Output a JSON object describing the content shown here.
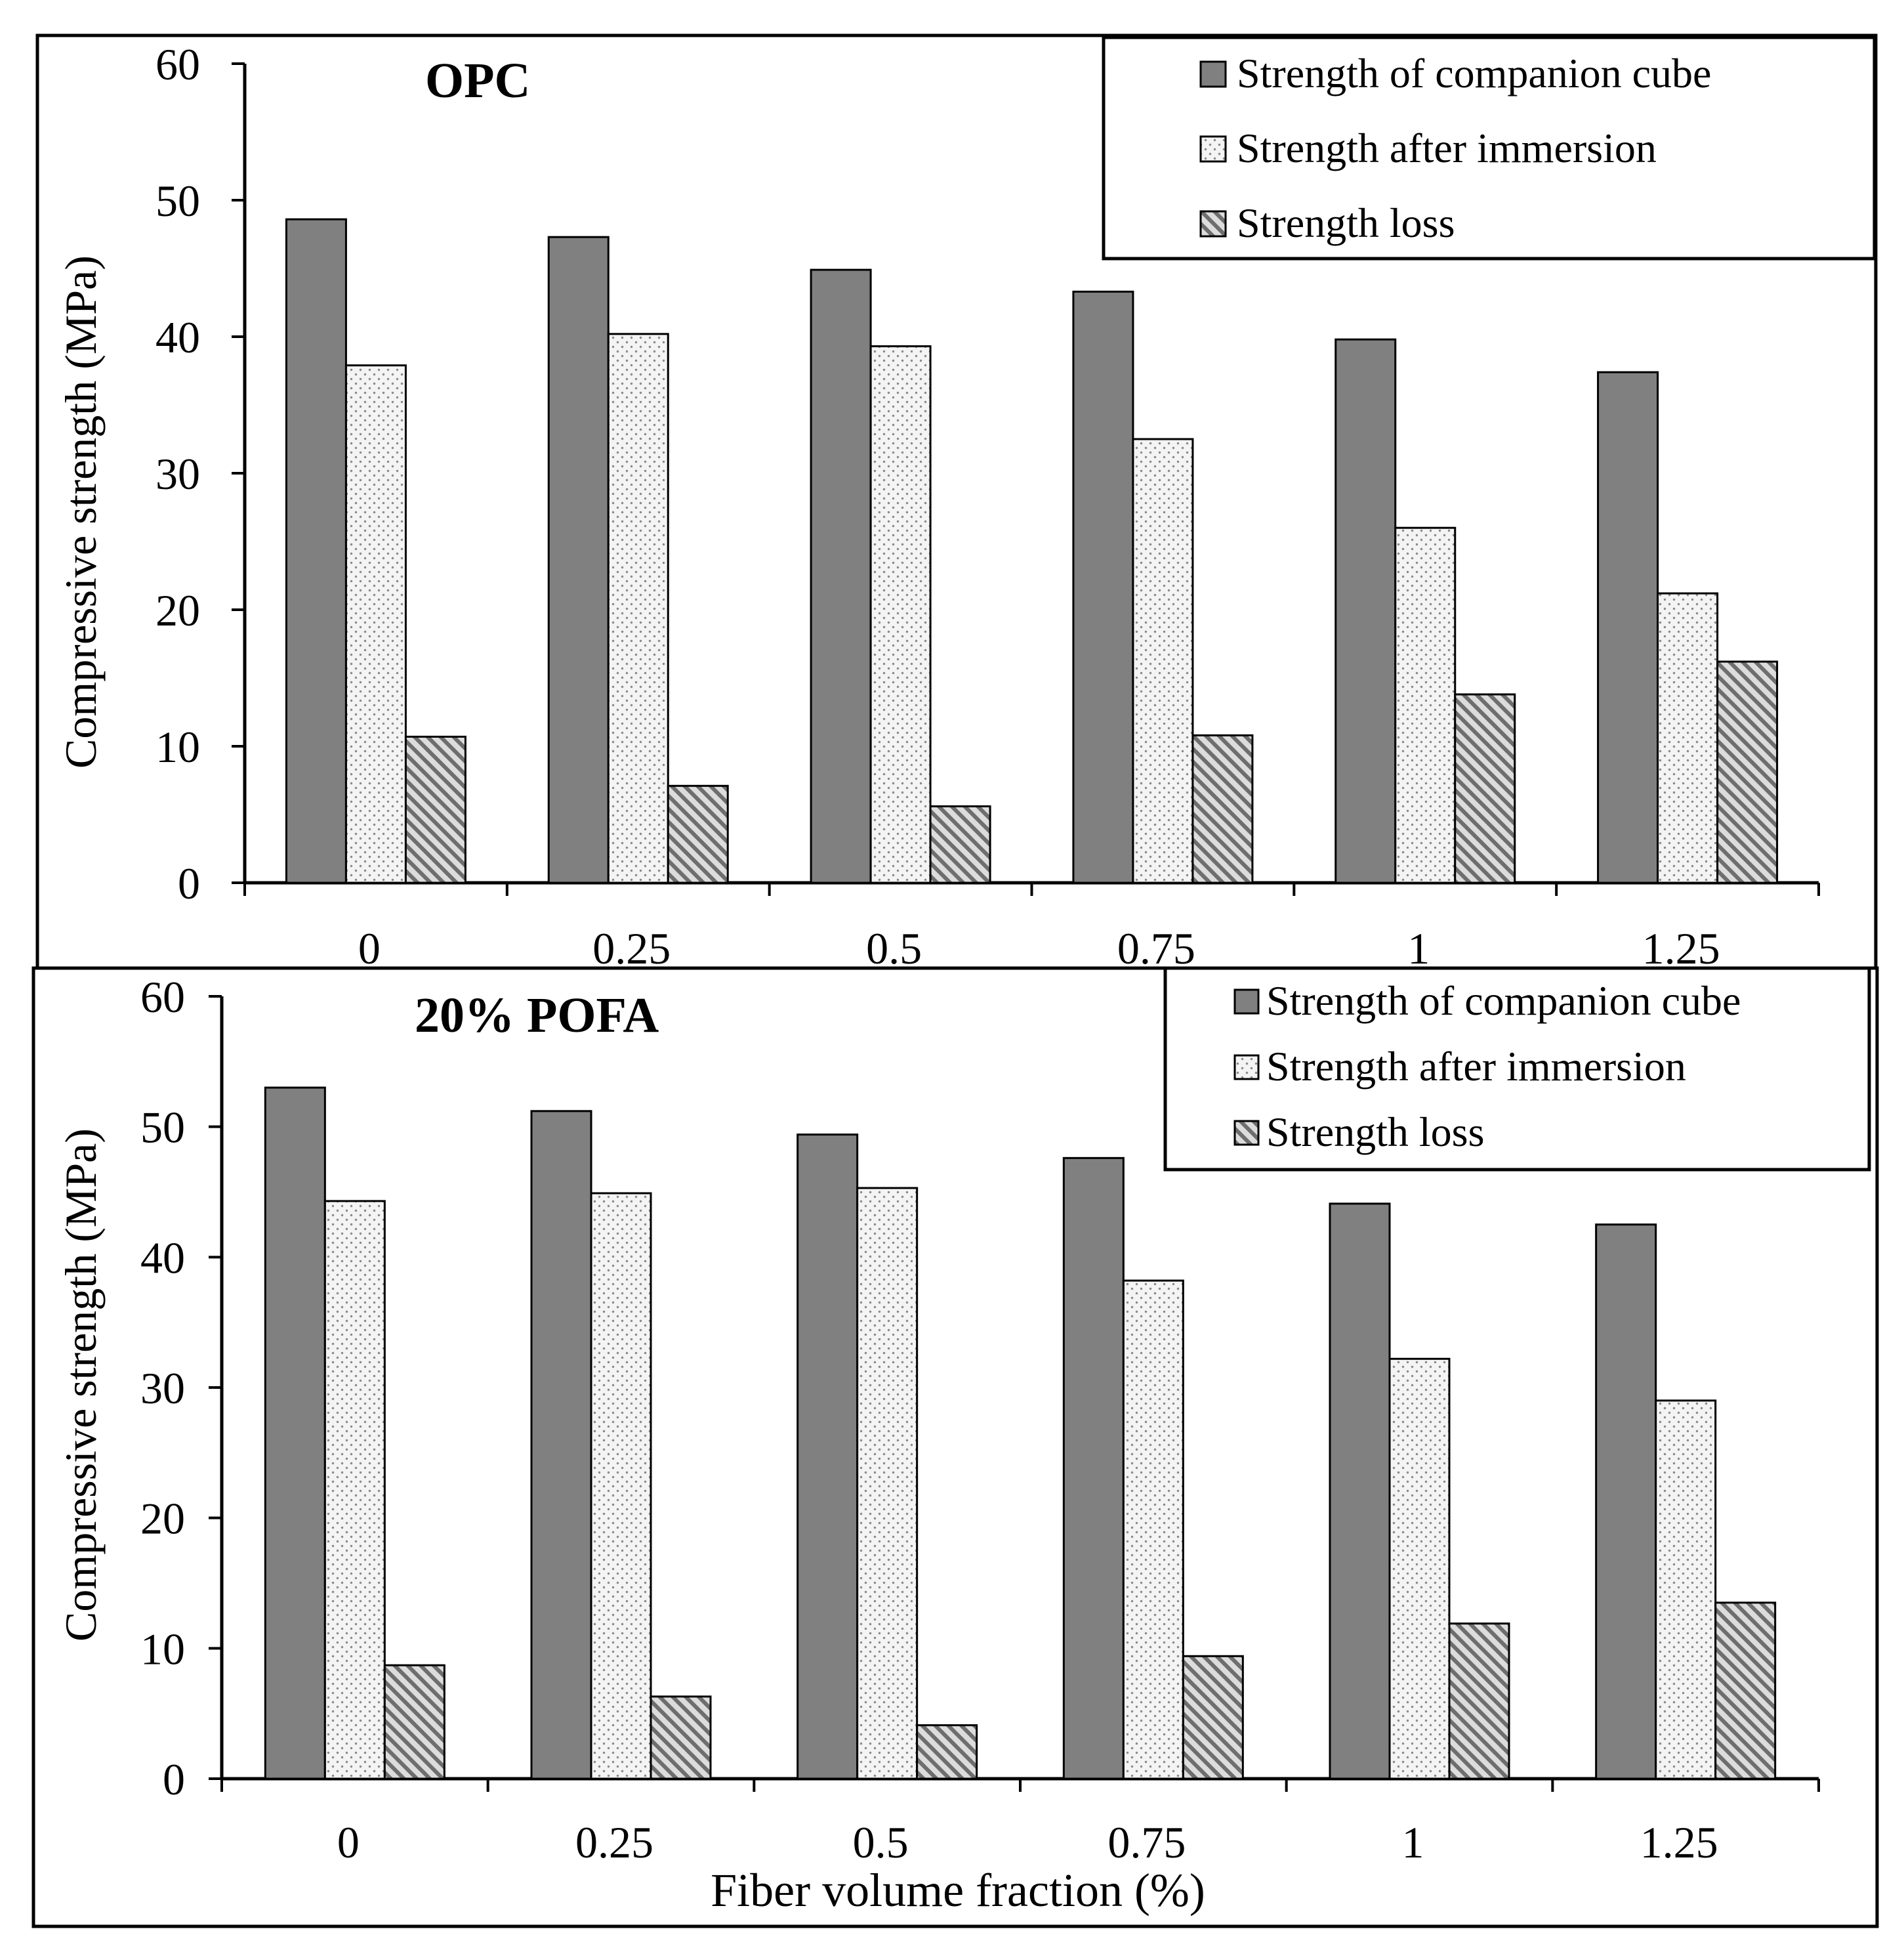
{
  "chart_data": [
    {
      "type": "bar",
      "panel_label": "OPC",
      "title": "OPC",
      "ylabel": "Compressive strength (MPa)",
      "xlabel": "",
      "ylim": [
        0,
        60
      ],
      "yticks": [
        0,
        10,
        20,
        30,
        40,
        50,
        60
      ],
      "categories": [
        "0",
        "0.25",
        "0.5",
        "0.75",
        "1",
        "1.25"
      ],
      "legend_position": "top-right",
      "series": [
        {
          "name": "Strength of companion cube",
          "pattern": "solid",
          "values": [
            48.6,
            47.3,
            44.9,
            43.3,
            39.8,
            37.4
          ]
        },
        {
          "name": "Strength after immersion",
          "pattern": "dots",
          "values": [
            37.9,
            40.2,
            39.3,
            32.5,
            26.0,
            21.2
          ]
        },
        {
          "name": "Strength loss",
          "pattern": "hatch",
          "values": [
            10.7,
            7.1,
            5.6,
            10.8,
            13.8,
            16.2
          ]
        }
      ]
    },
    {
      "type": "bar",
      "panel_label": "20% POFA",
      "title": "20% POFA",
      "ylabel": "Compressive strength (MPa)",
      "xlabel": "Fiber volume fraction (%)",
      "ylim": [
        0,
        60
      ],
      "yticks": [
        0,
        10,
        20,
        30,
        40,
        50,
        60
      ],
      "categories": [
        "0",
        "0.25",
        "0.5",
        "0.75",
        "1",
        "1.25"
      ],
      "legend_position": "top-right",
      "series": [
        {
          "name": "Strength of companion cube",
          "pattern": "solid",
          "values": [
            53.0,
            51.2,
            49.4,
            47.6,
            44.1,
            42.5
          ]
        },
        {
          "name": "Strength after immersion",
          "pattern": "dots",
          "values": [
            44.3,
            44.9,
            45.3,
            38.2,
            32.2,
            29.0
          ]
        },
        {
          "name": "Strength loss",
          "pattern": "hatch",
          "values": [
            8.7,
            6.3,
            4.1,
            9.4,
            11.9,
            13.5
          ]
        }
      ]
    }
  ],
  "colors": {
    "solid": "#808080",
    "dots_bg": "#f4f4f4",
    "dots_fg": "#8a8a8a",
    "hatch_bg": "#dcdcdc",
    "hatch_fg": "#6e6e6e",
    "stroke": "#000000"
  }
}
